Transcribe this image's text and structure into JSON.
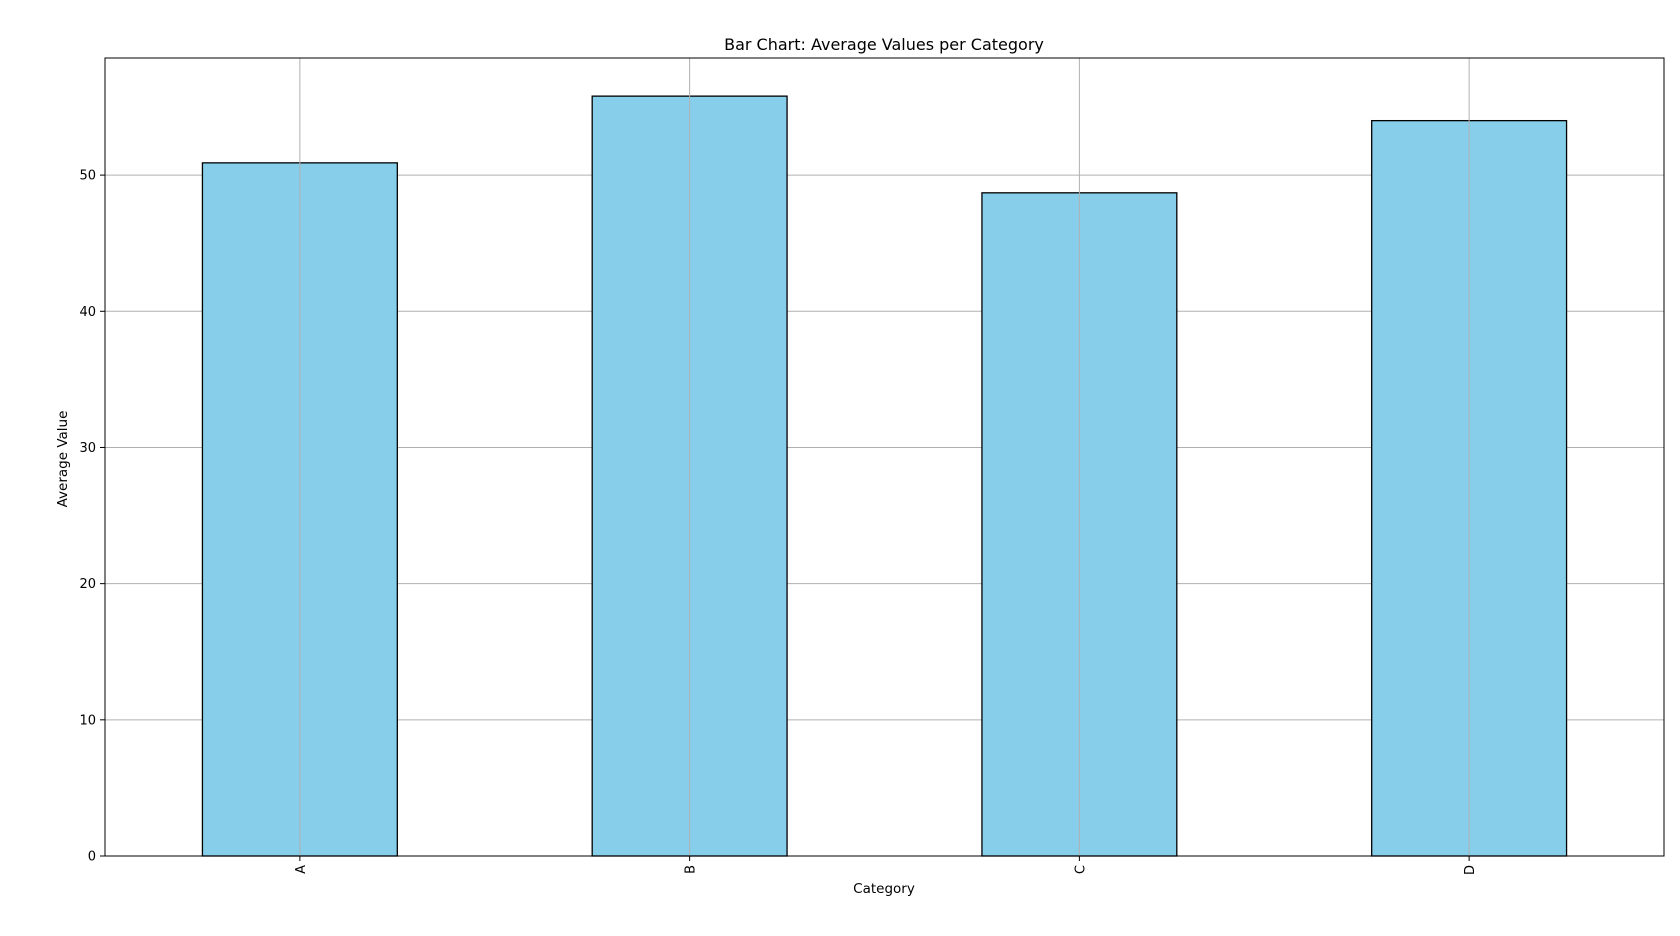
{
  "chart_data": {
    "type": "bar",
    "title": "Bar Chart: Average Values per Category",
    "xlabel": "Category",
    "ylabel": "Average Value",
    "categories": [
      "A",
      "B",
      "C",
      "D"
    ],
    "values": [
      50.9,
      55.8,
      48.7,
      54.0
    ],
    "ylim": [
      0,
      58.6
    ],
    "yticks": [
      0,
      10,
      20,
      30,
      40,
      50
    ],
    "ytick_labels": [
      "0",
      "10",
      "20",
      "30",
      "40",
      "50"
    ],
    "xtick_rotation": "vertical",
    "grid": true,
    "colors": {
      "bar_fill": "#87CEEB",
      "bar_edge": "#000000",
      "grid": "#b0b0b0",
      "axes": "#000000"
    }
  }
}
